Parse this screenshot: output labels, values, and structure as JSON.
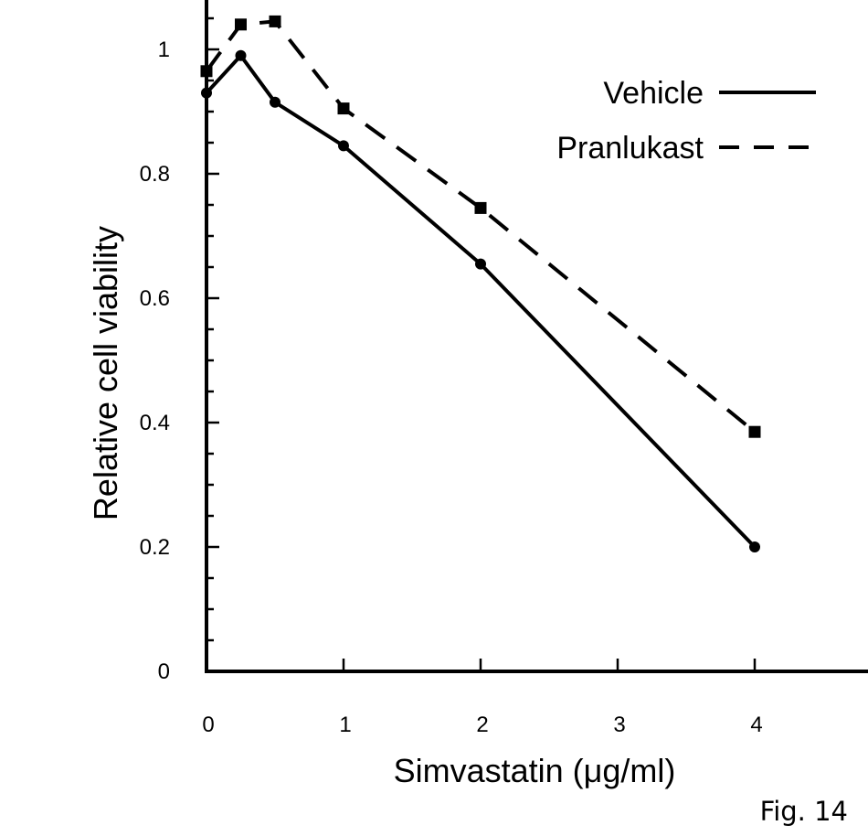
{
  "chart_data": {
    "type": "line",
    "title": "",
    "xlabel": "Simvastatin (μg/ml)",
    "ylabel": "Relative cell viability",
    "xlim": [
      0,
      4.8
    ],
    "ylim": [
      0,
      1.05
    ],
    "x_ticks": [
      0,
      1,
      2,
      3,
      4
    ],
    "x_tick_labels": [
      "0",
      "1",
      "2",
      "3",
      "4"
    ],
    "y_ticks": [
      0,
      0.2,
      0.4,
      0.6,
      0.8,
      1
    ],
    "y_tick_labels": [
      "0",
      "0.2",
      "0.4",
      "0.6",
      "0.8",
      "1"
    ],
    "y_minor_step": 0.05,
    "grid": false,
    "legend_position": "top-right",
    "series": [
      {
        "name": "Vehicle",
        "line_style": "solid",
        "marker": "circle",
        "color": "#000000",
        "x": [
          0,
          0.25,
          0.5,
          1,
          2,
          4
        ],
        "y": [
          0.93,
          0.99,
          0.915,
          0.845,
          0.655,
          0.2
        ]
      },
      {
        "name": "Pranlukast",
        "line_style": "dashed",
        "marker": "square",
        "color": "#000000",
        "x": [
          0,
          0.25,
          0.5,
          1,
          2,
          4
        ],
        "y": [
          0.965,
          1.04,
          1.045,
          0.905,
          0.745,
          0.385
        ]
      }
    ]
  },
  "caption": "Fig. 14"
}
